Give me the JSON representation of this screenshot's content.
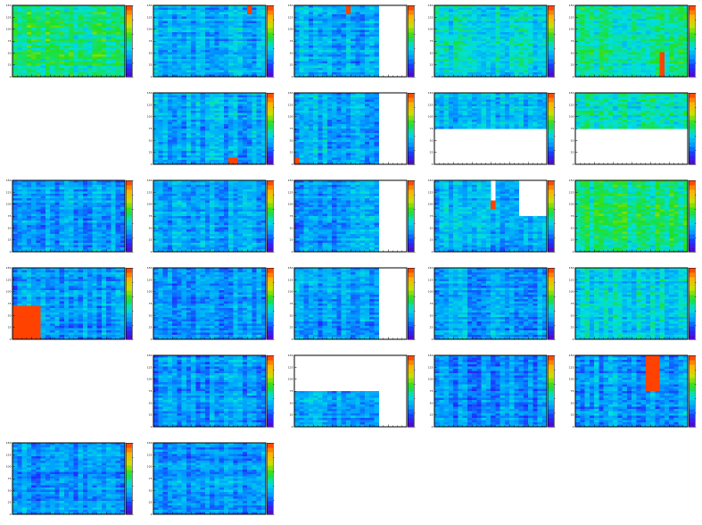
{
  "figure": {
    "rows": 6,
    "cols": 5,
    "y_tick_labels": [
      "0",
      "25",
      "50",
      "75",
      "100",
      "125",
      "150"
    ],
    "colormap": [
      "#5a00c8",
      "#1e30ff",
      "#00a0ff",
      "#00e0e0",
      "#20e020",
      "#c8e000",
      "#ffb000",
      "#ff3000"
    ]
  },
  "chart_data": [
    {
      "type": "heatmap",
      "id": "r1c1",
      "row": 0,
      "col": 0,
      "base": 0.5,
      "ylim": [
        0,
        150
      ],
      "blank": [],
      "hot": []
    },
    {
      "type": "heatmap",
      "id": "r1c2",
      "row": 0,
      "col": 1,
      "base": 0.33,
      "ylim": [
        0,
        150
      ],
      "blank": [],
      "hot": [
        [
          0.82,
          0.88,
          0.88,
          1.0
        ]
      ]
    },
    {
      "type": "heatmap",
      "id": "r1c3",
      "row": 0,
      "col": 2,
      "base": 0.32,
      "ylim": [
        0,
        150
      ],
      "blank": [
        [
          0.74,
          1.0,
          0.0,
          1.0
        ]
      ],
      "hot": [
        [
          0.45,
          0.5,
          0.88,
          1.0
        ]
      ]
    },
    {
      "type": "heatmap",
      "id": "r1c4",
      "row": 0,
      "col": 3,
      "base": 0.4,
      "ylim": [
        0,
        150
      ],
      "blank": [],
      "hot": []
    },
    {
      "type": "heatmap",
      "id": "r1c5",
      "row": 0,
      "col": 4,
      "base": 0.47,
      "ylim": [
        0,
        150
      ],
      "blank": [],
      "hot": [
        [
          0.74,
          0.8,
          0.0,
          0.35
        ]
      ]
    },
    {
      "type": "heatmap",
      "id": "r2c2",
      "row": 1,
      "col": 1,
      "base": 0.33,
      "ylim": [
        0,
        150
      ],
      "blank": [],
      "hot": [
        [
          0.68,
          0.74,
          0.0,
          0.1
        ]
      ]
    },
    {
      "type": "heatmap",
      "id": "r2c3",
      "row": 1,
      "col": 2,
      "base": 0.32,
      "ylim": [
        0,
        150
      ],
      "blank": [
        [
          0.74,
          1.0,
          0.0,
          1.0
        ]
      ],
      "hot": [
        [
          0.0,
          0.06,
          0.0,
          0.1
        ]
      ]
    },
    {
      "type": "heatmap",
      "id": "r2c4",
      "row": 1,
      "col": 3,
      "base": 0.35,
      "ylim": [
        0,
        150
      ],
      "blank": [
        [
          0.0,
          1.0,
          0.0,
          0.5
        ]
      ],
      "hot": []
    },
    {
      "type": "heatmap",
      "id": "r2c5",
      "row": 1,
      "col": 4,
      "base": 0.45,
      "ylim": [
        0,
        150
      ],
      "blank": [
        [
          0.0,
          1.0,
          0.0,
          0.5
        ]
      ],
      "hot": []
    },
    {
      "type": "heatmap",
      "id": "r3c1",
      "row": 2,
      "col": 0,
      "base": 0.3,
      "ylim": [
        0,
        150
      ],
      "blank": [],
      "hot": []
    },
    {
      "type": "heatmap",
      "id": "r3c2",
      "row": 2,
      "col": 1,
      "base": 0.3,
      "ylim": [
        0,
        150
      ],
      "blank": [],
      "hot": []
    },
    {
      "type": "heatmap",
      "id": "r3c3",
      "row": 2,
      "col": 2,
      "base": 0.3,
      "ylim": [
        0,
        150
      ],
      "blank": [
        [
          0.74,
          1.0,
          0.0,
          1.0
        ]
      ],
      "hot": []
    },
    {
      "type": "heatmap",
      "id": "r3c4",
      "row": 2,
      "col": 3,
      "base": 0.33,
      "ylim": [
        0,
        150
      ],
      "blank": [
        [
          0.74,
          1.0,
          0.5,
          1.0
        ],
        [
          0.49,
          0.55,
          0.72,
          1.0
        ]
      ],
      "hot": [
        [
          0.49,
          0.55,
          0.6,
          0.72
        ]
      ]
    },
    {
      "type": "heatmap",
      "id": "r3c5",
      "row": 2,
      "col": 4,
      "base": 0.5,
      "ylim": [
        0,
        150
      ],
      "blank": [],
      "hot": []
    },
    {
      "type": "heatmap",
      "id": "r4c1",
      "row": 3,
      "col": 0,
      "base": 0.29,
      "ylim": [
        0,
        150
      ],
      "blank": [],
      "hot": [
        [
          0.0,
          0.25,
          0.0,
          0.48
        ]
      ]
    },
    {
      "type": "heatmap",
      "id": "r4c2",
      "row": 3,
      "col": 1,
      "base": 0.28,
      "ylim": [
        0,
        150
      ],
      "blank": [],
      "hot": []
    },
    {
      "type": "heatmap",
      "id": "r4c3",
      "row": 3,
      "col": 2,
      "base": 0.3,
      "ylim": [
        0,
        150
      ],
      "blank": [
        [
          0.74,
          1.0,
          0.0,
          1.0
        ]
      ],
      "hot": []
    },
    {
      "type": "heatmap",
      "id": "r4c4",
      "row": 3,
      "col": 3,
      "base": 0.3,
      "ylim": [
        0,
        150
      ],
      "blank": [],
      "hot": []
    },
    {
      "type": "heatmap",
      "id": "r4c5",
      "row": 3,
      "col": 4,
      "base": 0.4,
      "ylim": [
        0,
        150
      ],
      "blank": [],
      "hot": []
    },
    {
      "type": "heatmap",
      "id": "r5c2",
      "row": 4,
      "col": 1,
      "base": 0.28,
      "ylim": [
        0,
        150
      ],
      "blank": [],
      "hot": []
    },
    {
      "type": "heatmap",
      "id": "r5c3",
      "row": 4,
      "col": 2,
      "base": 0.3,
      "ylim": [
        0,
        150
      ],
      "blank": [
        [
          0.0,
          1.0,
          0.5,
          1.0
        ],
        [
          0.74,
          1.0,
          0.0,
          1.0
        ]
      ],
      "hot": []
    },
    {
      "type": "heatmap",
      "id": "r5c4",
      "row": 4,
      "col": 3,
      "base": 0.26,
      "ylim": [
        0,
        150
      ],
      "blank": [],
      "hot": []
    },
    {
      "type": "heatmap",
      "id": "r5c5",
      "row": 4,
      "col": 4,
      "base": 0.3,
      "ylim": [
        0,
        150
      ],
      "blank": [],
      "hot": [
        [
          0.61,
          0.73,
          0.5,
          1.0
        ]
      ]
    },
    {
      "type": "heatmap",
      "id": "r6c1",
      "row": 5,
      "col": 0,
      "base": 0.28,
      "ylim": [
        0,
        150
      ],
      "blank": [],
      "hot": []
    },
    {
      "type": "heatmap",
      "id": "r6c2",
      "row": 5,
      "col": 1,
      "base": 0.28,
      "ylim": [
        0,
        150
      ],
      "blank": [],
      "hot": []
    }
  ]
}
